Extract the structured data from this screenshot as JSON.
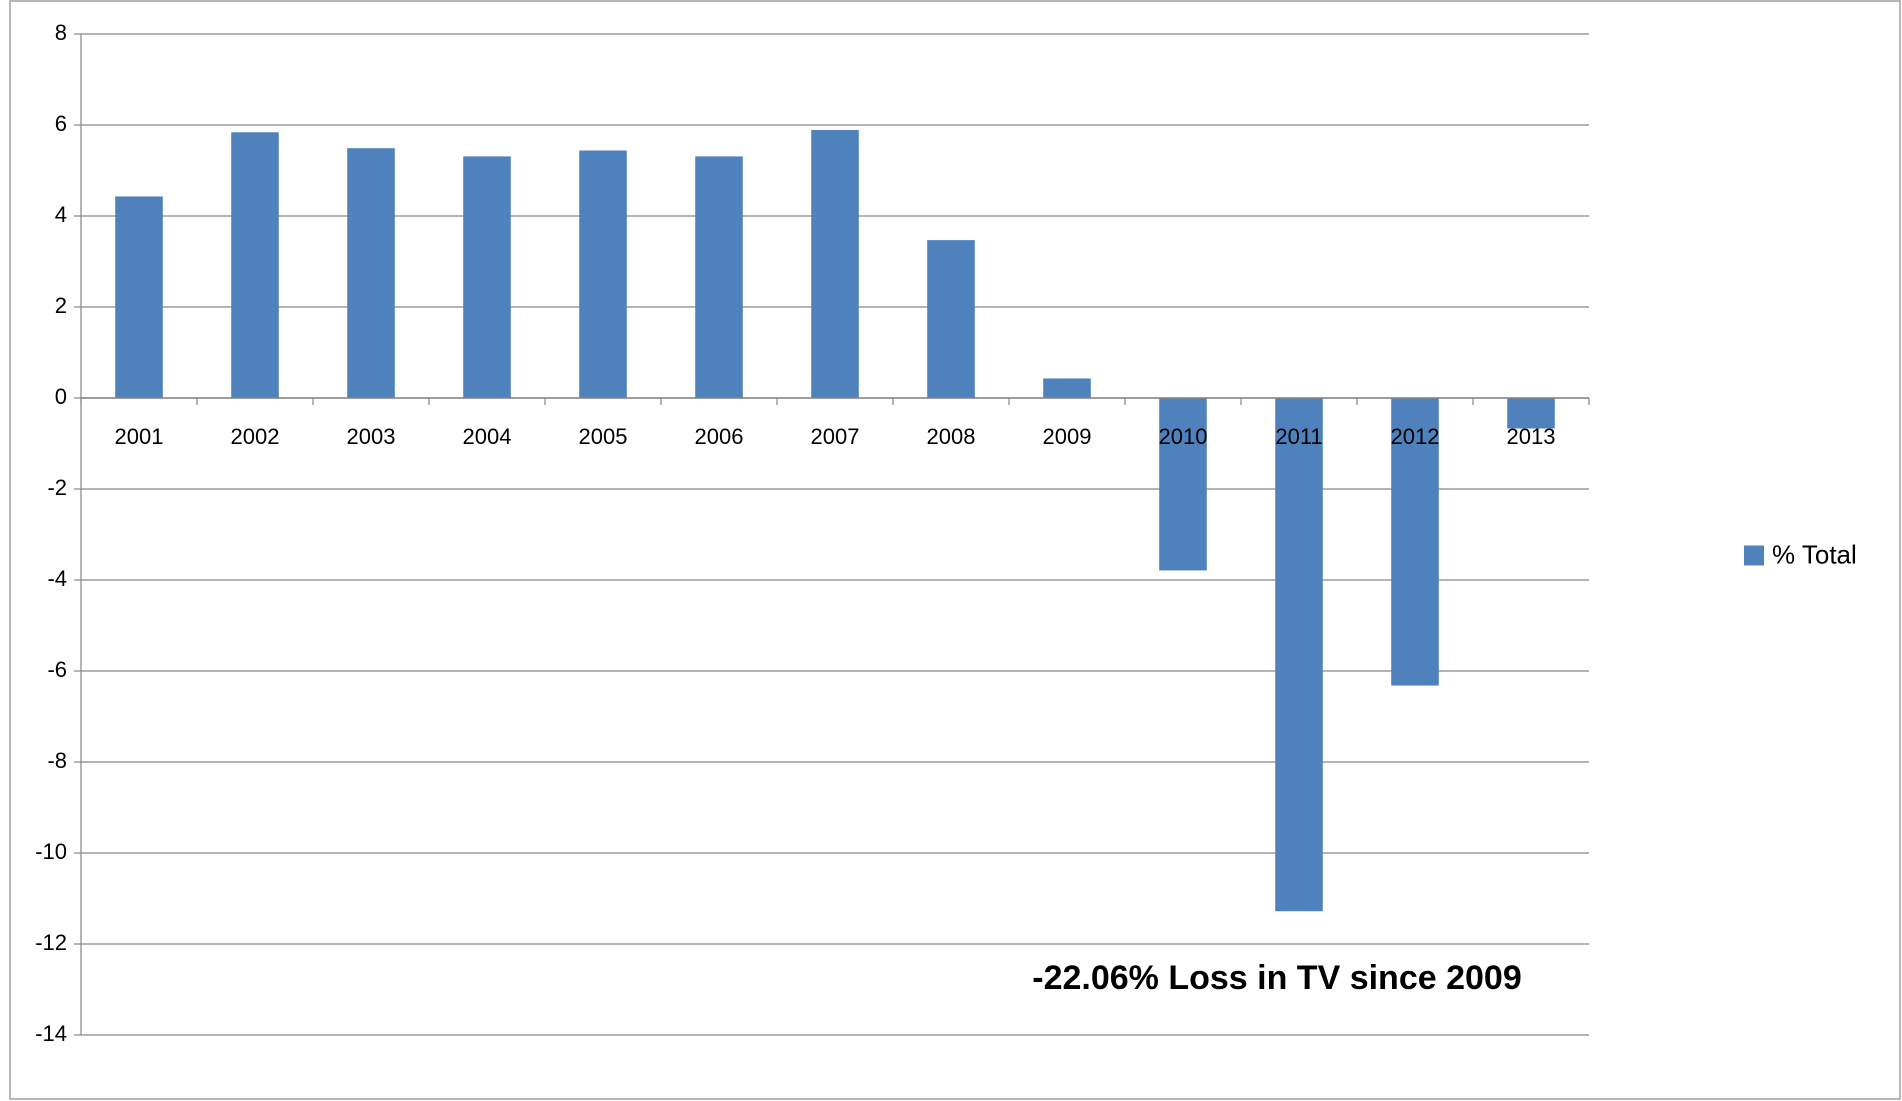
{
  "chart_data": {
    "type": "bar",
    "categories": [
      "2001",
      "2002",
      "2003",
      "2004",
      "2005",
      "2006",
      "2007",
      "2008",
      "2009",
      "2010",
      "2011",
      "2012",
      "2013"
    ],
    "series": [
      {
        "name": "% Total",
        "color": "#4f81bd",
        "values": [
          4.43,
          5.84,
          5.49,
          5.31,
          5.44,
          5.31,
          5.89,
          3.47,
          0.43,
          -3.79,
          -11.28,
          -6.32,
          -0.67
        ]
      }
    ],
    "ylim": [
      -14,
      8
    ],
    "yticks": [
      -14,
      -12,
      -10,
      -8,
      -6,
      -4,
      -2,
      0,
      2,
      4,
      6,
      8
    ],
    "grid": true,
    "legend": "right",
    "annotation": "-22.06% Loss in TV since 2009"
  }
}
